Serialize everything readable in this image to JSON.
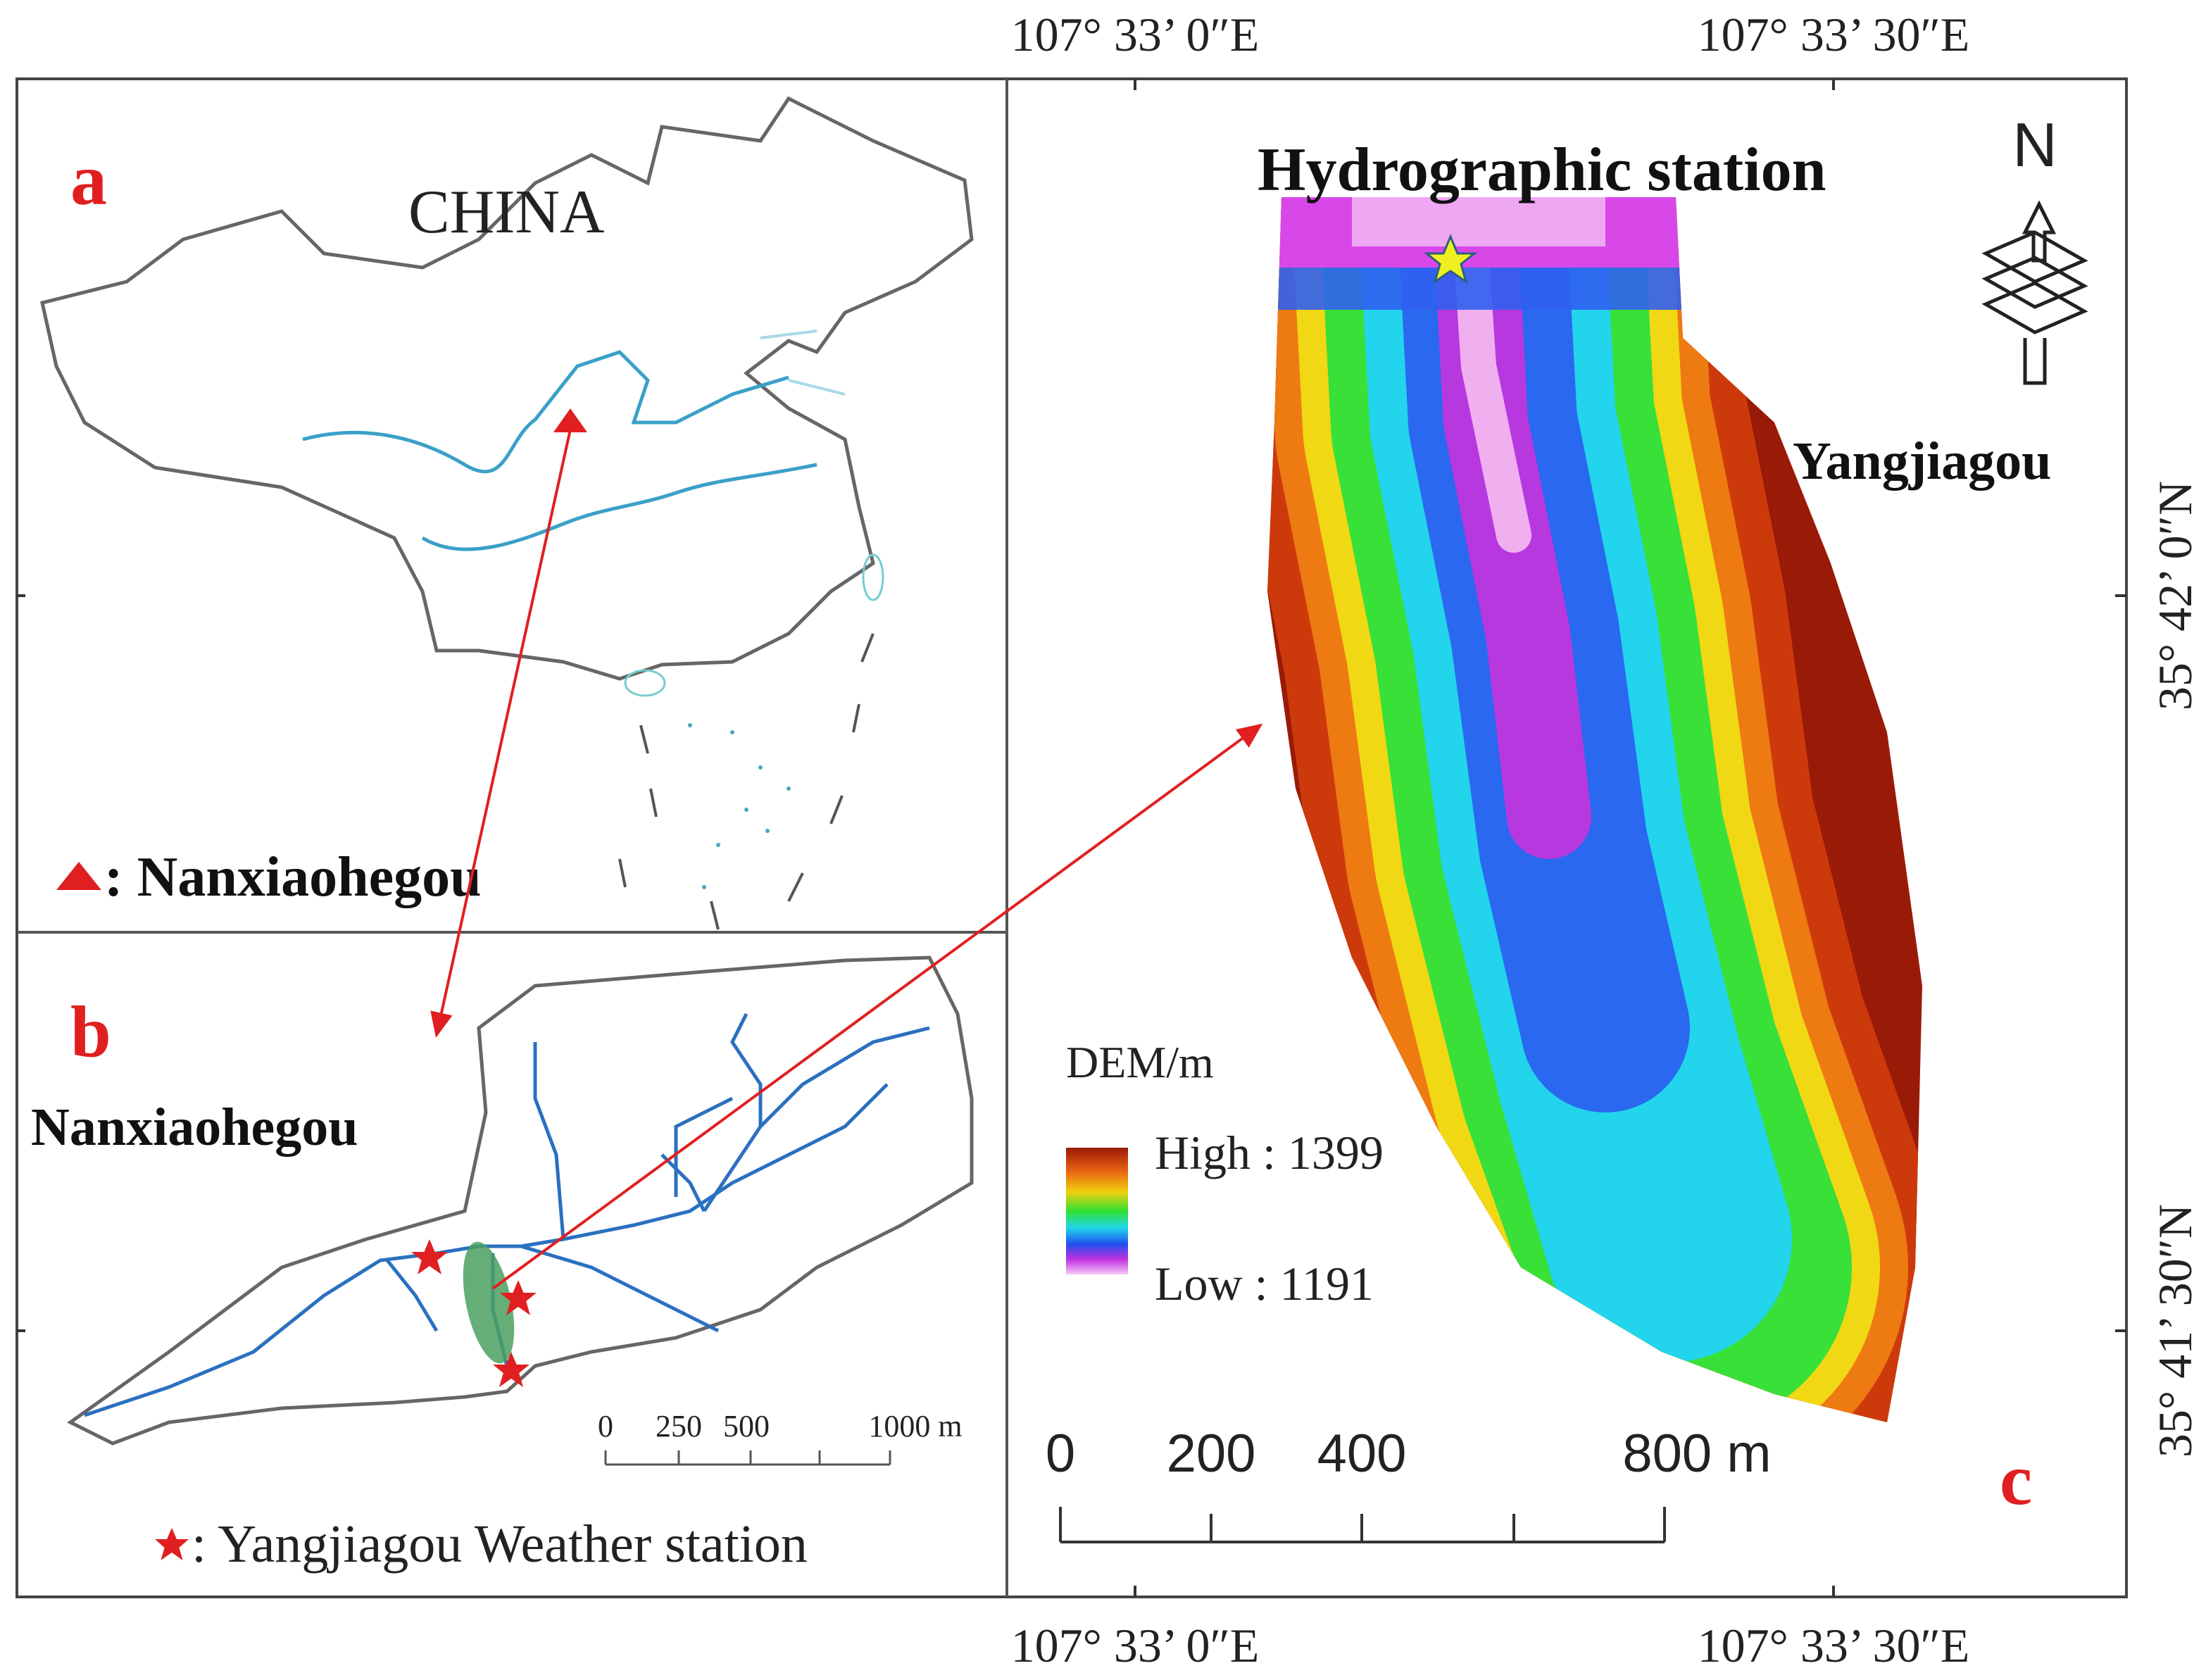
{
  "coordinates": {
    "top": [
      "107°  33’ 0″E",
      "107°  33’ 30″E"
    ],
    "bottom": [
      "107°  33’ 0″E",
      "107°  33’ 30″E"
    ],
    "right": [
      "35°  42’ 0″N",
      "35°  41’ 30″N"
    ]
  },
  "panel_a": {
    "label": "a",
    "country": "CHINA",
    "legend": ": Nanxiaohegou"
  },
  "panel_b": {
    "label": "b",
    "name": "Nanxiaohegou",
    "scale_bar": [
      0,
      250,
      500,
      "1000 m"
    ],
    "legend": ": Yangjiagou Weather station"
  },
  "panel_c": {
    "label": "c",
    "station": "Hydrographic station",
    "name": "Yangjiagou",
    "north": "N",
    "legend": {
      "title": "DEM/m",
      "high": "High : 1399",
      "low": "Low : 1191"
    },
    "scale_bar": [
      0,
      200,
      400,
      "800 m"
    ]
  }
}
